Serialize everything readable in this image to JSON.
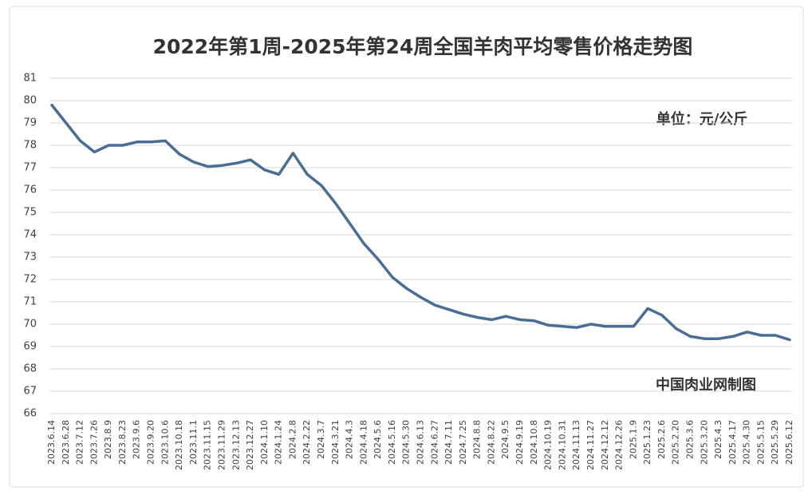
{
  "chart_data": {
    "type": "line",
    "title": "2022年第1周-2025年第24周全国羊肉平均零售价格走势图",
    "unit_label": "单位：元/公斤",
    "source_label": "中国肉业网制图",
    "categories": [
      "2023.6.14",
      "2023.6.28",
      "2023.7.12",
      "2023.7.26",
      "2023.8.9",
      "2023.8.23",
      "2023.9.6",
      "2023.9.20",
      "2023.10.6",
      "2023.10.18",
      "2023.11.1",
      "2023.11.15",
      "2023.11.29",
      "2023.12.13",
      "2023.12.27",
      "2024.1.10",
      "2024.1.24",
      "2024.2.8",
      "2024.2.22",
      "2024.3.7",
      "2024.3.21",
      "2024.4.3",
      "2024.4.18",
      "2024.5.6",
      "2024.5.16",
      "2024.5.30",
      "2024.6.13",
      "2024.6.27",
      "2024.7.11",
      "2024.7.25",
      "2024.8.8",
      "2024.8.22",
      "2024.9.5",
      "2024.9.19",
      "2024.10.8",
      "2024.10.19",
      "2024.10.31",
      "2024.11.13",
      "2024.11.27",
      "2024.12.12",
      "2024.12.26",
      "2025.1.9",
      "2025.1.23",
      "2025.2.6",
      "2025.2.20",
      "2025.3.6",
      "2025.3.20",
      "2025.4.3",
      "2025.4.17",
      "2025.4.30",
      "2025.5.15",
      "2025.5.29",
      "2025.6.12"
    ],
    "series": [
      {
        "color": "#4a6d94",
        "values": [
          79.8,
          79.0,
          78.2,
          77.7,
          78.0,
          78.0,
          78.15,
          78.15,
          78.2,
          77.6,
          77.25,
          77.05,
          77.1,
          77.2,
          77.35,
          76.9,
          76.7,
          77.65,
          76.7,
          76.2,
          75.4,
          74.5,
          73.6,
          72.9,
          72.1,
          71.6,
          71.2,
          70.85,
          70.65,
          70.45,
          70.3,
          70.2,
          70.35,
          70.2,
          70.15,
          69.95,
          69.9,
          69.85,
          70.0,
          69.9,
          69.9,
          69.9,
          70.7,
          70.4,
          69.8,
          69.45,
          69.35,
          69.35,
          69.45,
          69.65,
          69.5,
          69.5,
          69.3
        ]
      }
    ],
    "ylim": [
      66,
      81
    ],
    "yticks": [
      66,
      67,
      68,
      69,
      70,
      71,
      72,
      73,
      74,
      75,
      76,
      77,
      78,
      79,
      80,
      81
    ],
    "grid": true
  }
}
